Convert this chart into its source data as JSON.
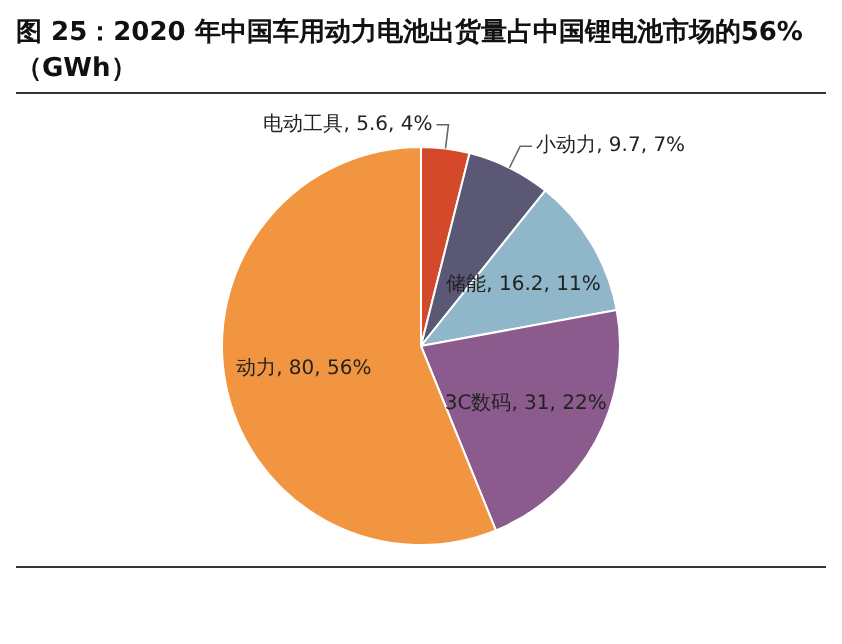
{
  "chart_data": {
    "type": "pie",
    "title": "图 25：2020 年中国车用动力电池出货量占中国锂电池市场的56%（GWh）",
    "categories": [
      "电动工具",
      "小动力",
      "储能",
      "3C数码",
      "动力"
    ],
    "values": [
      5.6,
      9.7,
      16.2,
      31,
      80
    ],
    "value_labels": [
      "5.6, 4%",
      "9.7, 7%",
      "16.2, 11%",
      "31, 22%",
      "80, 56%"
    ],
    "colors": [
      "#d4492a",
      "#5b5876",
      "#8fb6c9",
      "#8a5b8c",
      "#f29541"
    ],
    "legend": false
  }
}
